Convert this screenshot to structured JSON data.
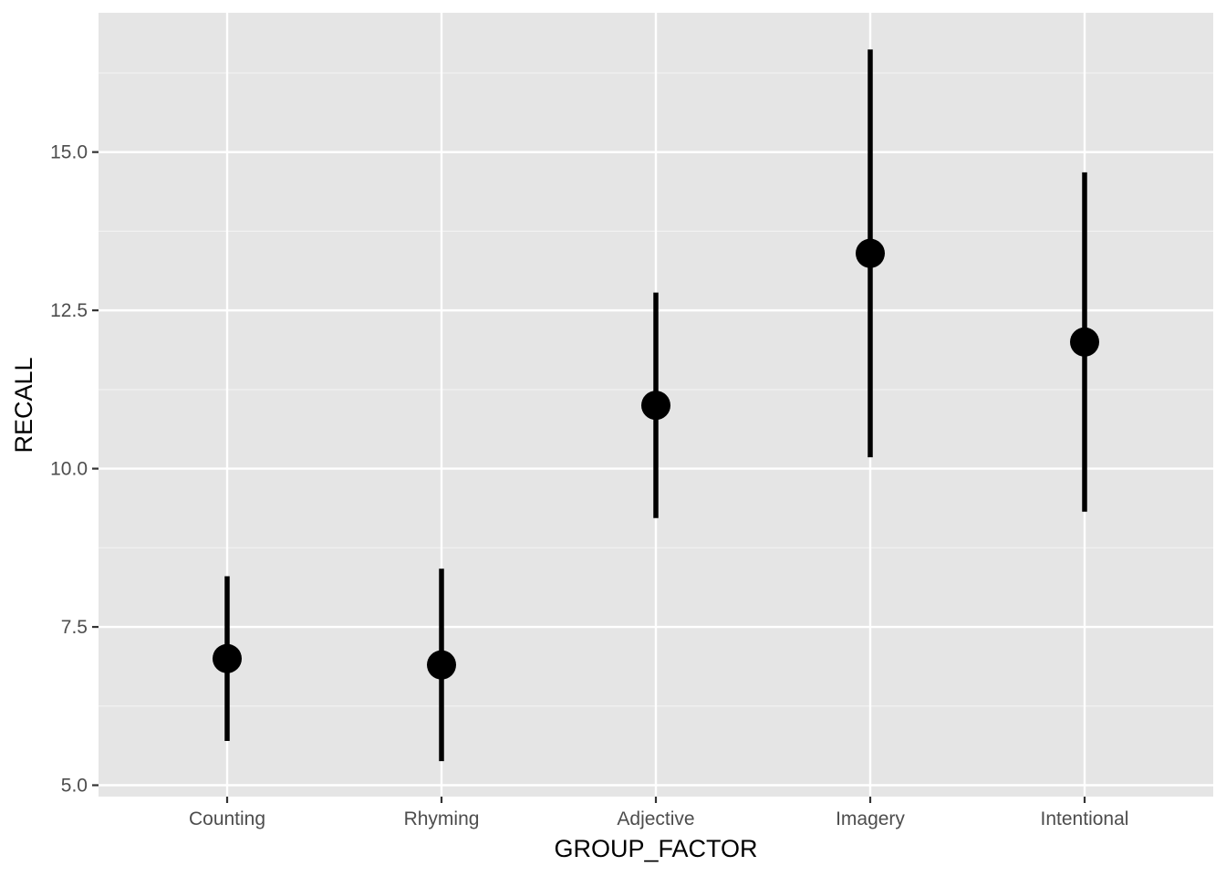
{
  "chart_data": {
    "type": "scatter",
    "subtype": "pointrange",
    "title": "",
    "xlabel": "GROUP_FACTOR",
    "ylabel": "RECALL",
    "categories": [
      "Counting",
      "Rhyming",
      "Adjective",
      "Imagery",
      "Intentional"
    ],
    "series": [
      {
        "values": [
          7.0,
          6.9,
          11.0,
          13.4,
          12.0
        ],
        "ymin": [
          5.7,
          5.38,
          9.22,
          10.18,
          9.32
        ],
        "ymax": [
          8.3,
          8.42,
          12.78,
          16.62,
          14.68
        ]
      }
    ],
    "ylim": [
      4.82,
      17.2
    ],
    "y_ticks": [
      5.0,
      7.5,
      10.0,
      12.5,
      15.0
    ],
    "y_tick_labels": [
      "5.0",
      "7.5",
      "10.0",
      "12.5",
      "15.0"
    ],
    "grid": true,
    "legend": "none",
    "colors": {
      "panel_background": "#e5e5e5",
      "grid_major": "#ffffff",
      "grid_minor": "#f2f2f2",
      "marks": "#000000",
      "tick_text": "#4d4d4d"
    }
  }
}
